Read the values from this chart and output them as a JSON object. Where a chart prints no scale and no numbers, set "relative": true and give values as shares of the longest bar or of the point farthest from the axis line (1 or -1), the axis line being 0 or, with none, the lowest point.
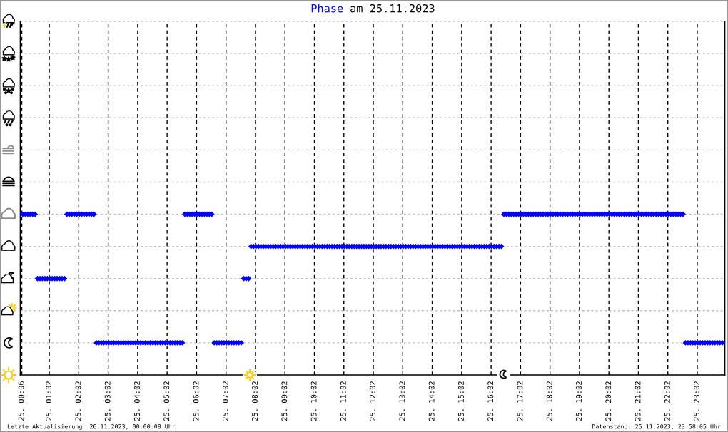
{
  "chart_data": {
    "type": "scatter",
    "title": "am 25.11.2023",
    "annotations": [
      "Letzte Aktualisierung: 26.11.2023, 00:00:08 Uhr",
      "Datenstand: 25.11.2023, 23:58:05 Uhr"
    ],
    "relative": true,
    "marker": "diamond",
    "grid": true,
    "tick_labels": "x",
    "xlim": [
      "2023-11-25T00:03",
      "2023-11-25T23:58"
    ],
    "xticks": [
      {
        "value": "2023-11-25T00:06",
        "label": "25. 00:06"
      },
      {
        "value": "2023-11-25T01:02",
        "label": "25. 01:02"
      },
      {
        "value": "2023-11-25T02:02",
        "label": "25. 02:02"
      },
      {
        "value": "2023-11-25T03:02",
        "label": "25. 03:02"
      },
      {
        "value": "2023-11-25T04:02",
        "label": "25. 04:02"
      },
      {
        "value": "2023-11-25T05:02",
        "label": "25. 05:02"
      },
      {
        "value": "2023-11-25T06:02",
        "label": "25. 06:02"
      },
      {
        "value": "2023-11-25T07:02",
        "label": "25. 07:02"
      },
      {
        "value": "2023-11-25T08:02",
        "label": "25. 08:02"
      },
      {
        "value": "2023-11-25T09:02",
        "label": "25. 09:02"
      },
      {
        "value": "2023-11-25T10:02",
        "label": "25. 10:02"
      },
      {
        "value": "2023-11-25T11:02",
        "label": "25. 11:02"
      },
      {
        "value": "2023-11-25T12:02",
        "label": "25. 12:02"
      },
      {
        "value": "2023-11-25T13:02",
        "label": "25. 13:02"
      },
      {
        "value": "2023-11-25T14:02",
        "label": "25. 14:02"
      },
      {
        "value": "2023-11-25T15:02",
        "label": "25. 15:02"
      },
      {
        "value": "2023-11-25T16:02",
        "label": "25. 16:02"
      },
      {
        "value": "2023-11-25T17:02",
        "label": "25. 17:02"
      },
      {
        "value": "2023-11-25T18:02",
        "label": "25. 18:02"
      },
      {
        "value": "2023-11-25T19:02",
        "label": "25. 19:02"
      },
      {
        "value": "2023-11-25T20:02",
        "label": "25. 20:02"
      },
      {
        "value": "2023-11-25T21:02",
        "label": "25. 21:02"
      },
      {
        "value": "2023-11-25T22:02",
        "label": "25. 22:02"
      },
      {
        "value": "2023-11-25T23:02",
        "label": "25. 23:02"
      }
    ],
    "x": [
      "2023-11-25T00:03",
      "2023-11-25T00:08",
      "2023-11-25T00:13",
      "2023-11-25T00:18",
      "2023-11-25T00:23",
      "2023-11-25T00:28",
      "2023-11-25T00:33",
      "2023-11-25T00:38",
      "2023-11-25T00:43",
      "2023-11-25T00:48",
      "2023-11-25T00:53",
      "2023-11-25T00:58",
      "2023-11-25T01:03",
      "2023-11-25T01:08",
      "2023-11-25T01:13",
      "2023-11-25T01:18",
      "2023-11-25T01:23",
      "2023-11-25T01:28",
      "2023-11-25T01:33",
      "2023-11-25T01:38",
      "2023-11-25T01:43",
      "2023-11-25T01:48",
      "2023-11-25T01:53",
      "2023-11-25T01:58",
      "2023-11-25T02:03",
      "2023-11-25T02:08",
      "2023-11-25T02:13",
      "2023-11-25T02:18",
      "2023-11-25T02:23",
      "2023-11-25T02:28",
      "2023-11-25T02:33",
      "2023-11-25T02:38",
      "2023-11-25T02:43",
      "2023-11-25T02:48",
      "2023-11-25T02:53",
      "2023-11-25T02:58",
      "2023-11-25T03:03",
      "2023-11-25T03:08",
      "2023-11-25T03:13",
      "2023-11-25T03:18",
      "2023-11-25T03:23",
      "2023-11-25T03:28",
      "2023-11-25T03:33",
      "2023-11-25T03:38",
      "2023-11-25T03:43",
      "2023-11-25T03:48",
      "2023-11-25T03:53",
      "2023-11-25T03:58",
      "2023-11-25T04:03",
      "2023-11-25T04:08",
      "2023-11-25T04:13",
      "2023-11-25T04:18",
      "2023-11-25T04:23",
      "2023-11-25T04:28",
      "2023-11-25T04:33",
      "2023-11-25T04:38",
      "2023-11-25T04:43",
      "2023-11-25T04:48",
      "2023-11-25T04:53",
      "2023-11-25T04:58",
      "2023-11-25T05:03",
      "2023-11-25T05:08",
      "2023-11-25T05:13",
      "2023-11-25T05:18",
      "2023-11-25T05:23",
      "2023-11-25T05:28",
      "2023-11-25T05:33",
      "2023-11-25T05:38",
      "2023-11-25T05:43",
      "2023-11-25T05:48",
      "2023-11-25T05:53",
      "2023-11-25T05:58",
      "2023-11-25T06:03",
      "2023-11-25T06:08",
      "2023-11-25T06:13",
      "2023-11-25T06:18",
      "2023-11-25T06:23",
      "2023-11-25T06:28",
      "2023-11-25T06:33",
      "2023-11-25T06:38",
      "2023-11-25T06:43",
      "2023-11-25T06:48",
      "2023-11-25T06:53",
      "2023-11-25T06:58",
      "2023-11-25T07:03",
      "2023-11-25T07:08",
      "2023-11-25T07:13",
      "2023-11-25T07:18",
      "2023-11-25T07:23",
      "2023-11-25T07:28",
      "2023-11-25T07:33",
      "2023-11-25T07:38",
      "2023-11-25T07:43",
      "2023-11-25T07:48",
      "2023-11-25T07:53",
      "2023-11-25T07:58",
      "2023-11-25T08:03",
      "2023-11-25T08:08",
      "2023-11-25T08:13",
      "2023-11-25T08:18",
      "2023-11-25T08:23",
      "2023-11-25T08:28",
      "2023-11-25T08:33",
      "2023-11-25T08:38",
      "2023-11-25T08:43",
      "2023-11-25T08:48",
      "2023-11-25T08:53",
      "2023-11-25T08:58",
      "2023-11-25T09:03",
      "2023-11-25T09:08",
      "2023-11-25T09:13",
      "2023-11-25T09:18",
      "2023-11-25T09:23",
      "2023-11-25T09:28",
      "2023-11-25T09:33",
      "2023-11-25T09:38",
      "2023-11-25T09:43",
      "2023-11-25T09:48",
      "2023-11-25T09:53",
      "2023-11-25T09:58",
      "2023-11-25T10:03",
      "2023-11-25T10:08",
      "2023-11-25T10:13",
      "2023-11-25T10:18",
      "2023-11-25T10:23",
      "2023-11-25T10:28",
      "2023-11-25T10:33",
      "2023-11-25T10:38",
      "2023-11-25T10:43",
      "2023-11-25T10:48",
      "2023-11-25T10:53",
      "2023-11-25T10:58",
      "2023-11-25T11:03",
      "2023-11-25T11:08",
      "2023-11-25T11:13",
      "2023-11-25T11:18",
      "2023-11-25T11:23",
      "2023-11-25T11:28",
      "2023-11-25T11:33",
      "2023-11-25T11:38",
      "2023-11-25T11:43",
      "2023-11-25T11:48",
      "2023-11-25T11:53",
      "2023-11-25T11:58",
      "2023-11-25T12:03",
      "2023-11-25T12:08",
      "2023-11-25T12:13",
      "2023-11-25T12:18",
      "2023-11-25T12:23",
      "2023-11-25T12:28",
      "2023-11-25T12:33",
      "2023-11-25T12:38",
      "2023-11-25T12:43",
      "2023-11-25T12:48",
      "2023-11-25T12:53",
      "2023-11-25T12:58",
      "2023-11-25T13:03",
      "2023-11-25T13:08",
      "2023-11-25T13:13",
      "2023-11-25T13:18",
      "2023-11-25T13:23",
      "2023-11-25T13:28",
      "2023-11-25T13:33",
      "2023-11-25T13:38",
      "2023-11-25T13:43",
      "2023-11-25T13:48",
      "2023-11-25T13:53",
      "2023-11-25T13:58",
      "2023-11-25T14:03",
      "2023-11-25T14:08",
      "2023-11-25T14:13",
      "2023-11-25T14:18",
      "2023-11-25T14:23",
      "2023-11-25T14:28",
      "2023-11-25T14:33",
      "2023-11-25T14:38",
      "2023-11-25T14:43",
      "2023-11-25T14:48",
      "2023-11-25T14:53",
      "2023-11-25T14:58",
      "2023-11-25T15:03",
      "2023-11-25T15:08",
      "2023-11-25T15:13",
      "2023-11-25T15:18",
      "2023-11-25T15:23",
      "2023-11-25T15:28",
      "2023-11-25T15:33",
      "2023-11-25T15:38",
      "2023-11-25T15:43",
      "2023-11-25T15:48",
      "2023-11-25T15:53",
      "2023-11-25T15:58",
      "2023-11-25T16:03",
      "2023-11-25T16:08",
      "2023-11-25T16:13",
      "2023-11-25T16:18",
      "2023-11-25T16:23",
      "2023-11-25T16:28",
      "2023-11-25T16:33",
      "2023-11-25T16:38",
      "2023-11-25T16:43",
      "2023-11-25T16:48",
      "2023-11-25T16:53",
      "2023-11-25T16:58",
      "2023-11-25T17:03",
      "2023-11-25T17:08",
      "2023-11-25T17:13",
      "2023-11-25T17:18",
      "2023-11-25T17:23",
      "2023-11-25T17:28",
      "2023-11-25T17:33",
      "2023-11-25T17:38",
      "2023-11-25T17:43",
      "2023-11-25T17:48",
      "2023-11-25T17:53",
      "2023-11-25T17:58",
      "2023-11-25T18:03",
      "2023-11-25T18:08",
      "2023-11-25T18:13",
      "2023-11-25T18:18",
      "2023-11-25T18:23",
      "2023-11-25T18:28",
      "2023-11-25T18:33",
      "2023-11-25T18:38",
      "2023-11-25T18:43",
      "2023-11-25T18:48",
      "2023-11-25T18:53",
      "2023-11-25T18:58",
      "2023-11-25T19:03",
      "2023-11-25T19:08",
      "2023-11-25T19:13",
      "2023-11-25T19:18",
      "2023-11-25T19:23",
      "2023-11-25T19:28",
      "2023-11-25T19:33",
      "2023-11-25T19:38",
      "2023-11-25T19:43",
      "2023-11-25T19:48",
      "2023-11-25T19:53",
      "2023-11-25T19:58",
      "2023-11-25T20:03",
      "2023-11-25T20:08",
      "2023-11-25T20:13",
      "2023-11-25T20:18",
      "2023-11-25T20:23",
      "2023-11-25T20:28",
      "2023-11-25T20:33",
      "2023-11-25T20:38",
      "2023-11-25T20:43",
      "2023-11-25T20:48",
      "2023-11-25T20:53",
      "2023-11-25T20:58",
      "2023-11-25T21:03",
      "2023-11-25T21:08",
      "2023-11-25T21:13",
      "2023-11-25T21:18",
      "2023-11-25T21:23",
      "2023-11-25T21:28",
      "2023-11-25T21:33",
      "2023-11-25T21:38",
      "2023-11-25T21:43",
      "2023-11-25T21:48",
      "2023-11-25T21:53",
      "2023-11-25T21:58",
      "2023-11-25T22:03",
      "2023-11-25T22:08",
      "2023-11-25T22:13",
      "2023-11-25T22:18",
      "2023-11-25T22:23",
      "2023-11-25T22:28",
      "2023-11-25T22:33",
      "2023-11-25T22:38",
      "2023-11-25T22:43",
      "2023-11-25T22:48",
      "2023-11-25T22:53",
      "2023-11-25T22:58",
      "2023-11-25T23:03",
      "2023-11-25T23:08",
      "2023-11-25T23:13",
      "2023-11-25T23:18",
      "2023-11-25T23:23",
      "2023-11-25T23:28",
      "2023-11-25T23:33",
      "2023-11-25T23:38",
      "2023-11-25T23:43",
      "2023-11-25T23:48",
      "2023-11-25T23:53",
      "2023-11-25T23:58"
    ],
    "series": [
      {
        "name": "Phase",
        "color": "#0000ff",
        "values": [
          1,
          1,
          1,
          1,
          1,
          1,
          1,
          0.6,
          0.6,
          0.6,
          0.6,
          0.6,
          0.6,
          0.6,
          0.6,
          0.6,
          0.6,
          0.6,
          0.6,
          1,
          1,
          1,
          1,
          1,
          1,
          1,
          1,
          1,
          1,
          1,
          1,
          0.2,
          0.2,
          0.2,
          0.2,
          0.2,
          0.2,
          0.2,
          0.2,
          0.2,
          0.2,
          0.2,
          0.2,
          0.2,
          0.2,
          0.2,
          0.2,
          0.2,
          0.2,
          0.2,
          0.2,
          0.2,
          0.2,
          0.2,
          0.2,
          0.2,
          0.2,
          0.2,
          0.2,
          0.2,
          0.2,
          0.2,
          0.2,
          0.2,
          0.2,
          0.2,
          0.2,
          1,
          1,
          1,
          1,
          1,
          1,
          1,
          1,
          1,
          1,
          1,
          1,
          0.2,
          0.2,
          0.2,
          0.2,
          0.2,
          0.2,
          0.2,
          0.2,
          0.2,
          0.2,
          0.2,
          0.2,
          0.6,
          0.6,
          0.6,
          0.8,
          0.8,
          0.8,
          0.8,
          0.8,
          0.8,
          0.8,
          0.8,
          0.8,
          0.8,
          0.8,
          0.8,
          0.8,
          0.8,
          0.8,
          0.8,
          0.8,
          0.8,
          0.8,
          0.8,
          0.8,
          0.8,
          0.8,
          0.8,
          0.8,
          0.8,
          0.8,
          0.8,
          0.8,
          0.8,
          0.8,
          0.8,
          0.8,
          0.8,
          0.8,
          0.8,
          0.8,
          0.8,
          0.8,
          0.8,
          0.8,
          0.8,
          0.8,
          0.8,
          0.8,
          0.8,
          0.8,
          0.8,
          0.8,
          0.8,
          0.8,
          0.8,
          0.8,
          0.8,
          0.8,
          0.8,
          0.8,
          0.8,
          0.8,
          0.8,
          0.8,
          0.8,
          0.8,
          0.8,
          0.8,
          0.8,
          0.8,
          0.8,
          0.8,
          0.8,
          0.8,
          0.8,
          0.8,
          0.8,
          0.8,
          0.8,
          0.8,
          0.8,
          0.8,
          0.8,
          0.8,
          0.8,
          0.8,
          0.8,
          0.8,
          0.8,
          0.8,
          0.8,
          0.8,
          0.8,
          0.8,
          0.8,
          0.8,
          0.8,
          0.8,
          0.8,
          0.8,
          0.8,
          0.8,
          0.8,
          0.8,
          0.8,
          0.8,
          1,
          1,
          1,
          1,
          1,
          1,
          1,
          1,
          1,
          1,
          1,
          1,
          1,
          1,
          1,
          1,
          1,
          1,
          1,
          1,
          1,
          1,
          1,
          1,
          1,
          1,
          1,
          1,
          1,
          1,
          1,
          1,
          1,
          1,
          1,
          1,
          1,
          1,
          1,
          1,
          1,
          1,
          1,
          1,
          1,
          1,
          1,
          1,
          1,
          1,
          1,
          1,
          1,
          1,
          1,
          1,
          1,
          1,
          1,
          1,
          1,
          1,
          1,
          1,
          1,
          1,
          1,
          1,
          1,
          1,
          1,
          1,
          1,
          1,
          0.2,
          0.2,
          0.2,
          0.2,
          0.2,
          0.2,
          0.2,
          0.2,
          0.2,
          0.2,
          0.2,
          0.2,
          0.2,
          0.2,
          0.2,
          0.2,
          0.2
        ]
      }
    ]
  }
}
